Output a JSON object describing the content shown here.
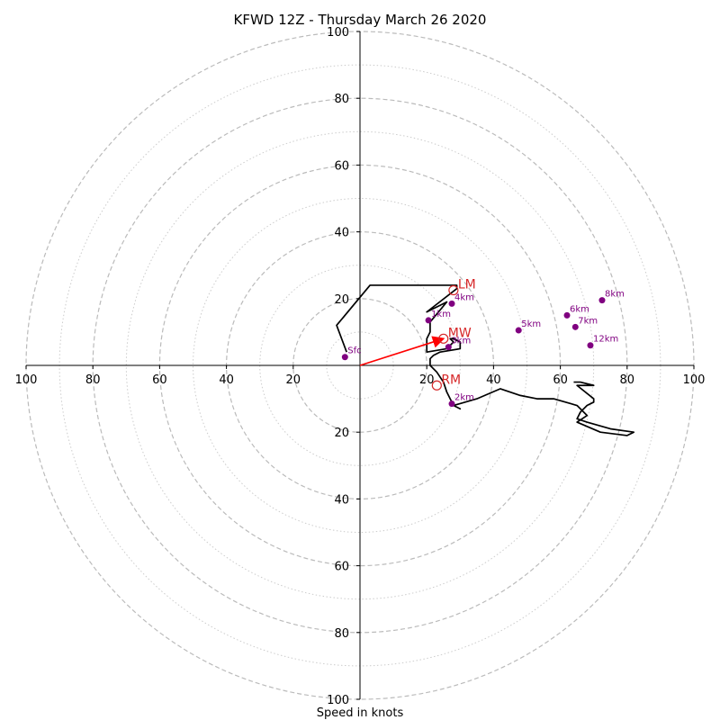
{
  "chart_data": {
    "type": "hodograph",
    "title": "KFWD 12Z - Thursday March 26 2020",
    "xlabel": "Speed in knots",
    "range": [
      -100,
      100
    ],
    "ring_major": [
      20,
      40,
      60,
      80,
      100
    ],
    "ring_minor": [
      10,
      30,
      50,
      70,
      90
    ],
    "tick_labels": {
      "right": [
        "20",
        "40",
        "60",
        "80",
        "100"
      ],
      "left": [
        "100",
        "80",
        "60",
        "40",
        "20"
      ],
      "up": [
        "20",
        "40",
        "60",
        "80",
        "100"
      ],
      "down": [
        "20",
        "40",
        "60",
        "80",
        "100"
      ]
    },
    "hodograph_trace": {
      "u": [
        -4,
        -7,
        3,
        28,
        29,
        29,
        20,
        26,
        21,
        21,
        20,
        20,
        20,
        26,
        27,
        27,
        28,
        27,
        28,
        30,
        30,
        24,
        22,
        21,
        21,
        23,
        25,
        26,
        28,
        30,
        28,
        35,
        42,
        48,
        53,
        58,
        65,
        68,
        65,
        72,
        80,
        82,
        75,
        68,
        65,
        66,
        68,
        70,
        70,
        65,
        70,
        66,
        64
      ],
      "v": [
        4,
        12,
        24,
        24,
        24,
        23,
        16,
        19,
        13,
        10,
        8,
        7,
        4,
        5,
        5,
        6,
        7,
        8,
        8,
        7,
        5,
        4,
        3,
        2,
        0,
        -2,
        -5,
        -8,
        -12,
        -13,
        -12,
        -10,
        -7,
        -9,
        -10,
        -10,
        -12,
        -15,
        -17,
        -20,
        -21,
        -20,
        -19,
        -17,
        -16,
        -14,
        -12,
        -11,
        -10,
        -6,
        -6,
        -5,
        -5
      ]
    },
    "height_markers": [
      {
        "label": "Sfc",
        "u": -4.5,
        "v": 2.5
      },
      {
        "label": "1km",
        "u": 20.5,
        "v": 13.5
      },
      {
        "label": "2km",
        "u": 27.5,
        "v": -11.5
      },
      {
        "label": "3km",
        "u": 26.5,
        "v": 5.5
      },
      {
        "label": "4km",
        "u": 27.5,
        "v": 18.5
      },
      {
        "label": "5km",
        "u": 47.5,
        "v": 10.5
      },
      {
        "label": "6km",
        "u": 62,
        "v": 15
      },
      {
        "label": "7km",
        "u": 64.5,
        "v": 11.5
      },
      {
        "label": "8km",
        "u": 72.5,
        "v": 19.5
      },
      {
        "label": "12km",
        "u": 69,
        "v": 6
      }
    ],
    "storm_motion": [
      {
        "label": "LM",
        "u": 28,
        "v": 22.5
      },
      {
        "label": "MW",
        "u": 25,
        "v": 8
      },
      {
        "label": "RM",
        "u": 23,
        "v": -6
      }
    ],
    "shear_vector": {
      "u": 25,
      "v": 8
    },
    "colors": {
      "trace": "#000000",
      "markers": "#800080",
      "storm_motion": "#d62728",
      "shear": "#ff0000",
      "rings": "#bbbbbb"
    }
  }
}
